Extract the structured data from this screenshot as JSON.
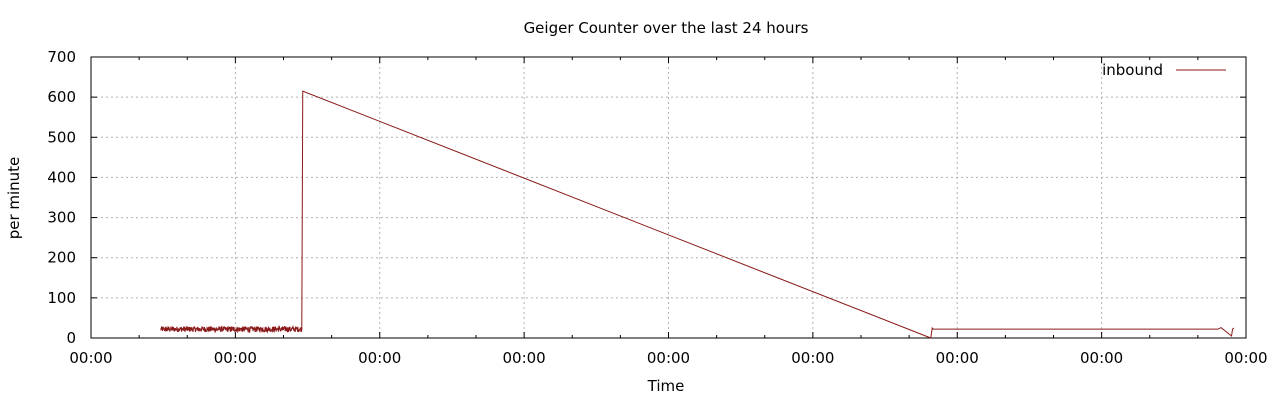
{
  "chart_data": {
    "type": "line",
    "title": "Geiger Counter over the last 24 hours",
    "xlabel": "Time",
    "ylabel": "per minute",
    "ylim": [
      0,
      700
    ],
    "y_ticks": [
      0,
      100,
      200,
      300,
      400,
      500,
      600,
      700
    ],
    "x_range": [
      0,
      24
    ],
    "x_ticks": [
      0,
      3,
      6,
      9,
      12,
      15,
      18,
      21,
      24
    ],
    "x_tick_labels": [
      "00:00",
      "00:00",
      "00:00",
      "00:00",
      "00:00",
      "00:00",
      "00:00",
      "00:00",
      "00:00"
    ],
    "grid": true,
    "legend": "top-right",
    "series": [
      {
        "name": "inbound",
        "color": "#8b1a1a",
        "noisy_segment": {
          "x_start": 1.45,
          "x_end": 4.38,
          "mean": 22,
          "jitter": 7
        },
        "points": [
          [
            4.38,
            20
          ],
          [
            4.4,
            615
          ],
          [
            17.45,
            0
          ],
          [
            17.48,
            25
          ],
          [
            17.5,
            22
          ],
          [
            23.42,
            22
          ],
          [
            23.48,
            26
          ],
          [
            23.7,
            5
          ],
          [
            23.72,
            22
          ],
          [
            23.75,
            25
          ]
        ]
      }
    ]
  }
}
